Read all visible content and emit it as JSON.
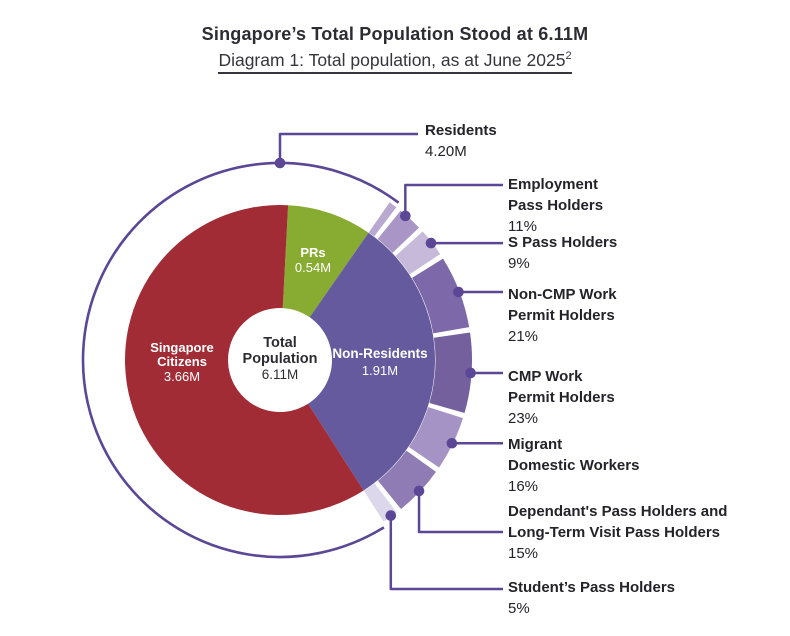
{
  "header": {
    "title": "Singapore’s Total Population Stood at 6.11M",
    "subtitle": "Diagram 1: Total population, as at June 2025",
    "subtitle_superscript": "2"
  },
  "chart_data": {
    "type": "donut",
    "title": "Singapore’s Total Population Stood at 6.11M",
    "subtitle": "Diagram 1: Total population, as at June 2025",
    "center": {
      "label_lines": [
        "Total",
        "Population"
      ],
      "value": "6.11M",
      "total_num": 6.11
    },
    "inner_segments": [
      {
        "name": "PRs",
        "label_lines": [
          "PRs"
        ],
        "value": "0.54M",
        "value_num": 0.54,
        "color": "#88ab31"
      },
      {
        "name": "Non-Residents",
        "label_lines": [
          "Non-Residents"
        ],
        "value": "1.91M",
        "value_num": 1.91,
        "color": "#655a9d"
      },
      {
        "name": "Singapore Citizens",
        "label_lines": [
          "Singapore",
          "Citizens"
        ],
        "value": "3.66M",
        "value_num": 3.66,
        "color": "#a22c35"
      }
    ],
    "residents_ring": {
      "label": "Residents",
      "value": "4.20M",
      "value_num": 4.2
    },
    "outer_segments": [
      {
        "label_lines": [
          "Employment",
          "Pass Holders"
        ],
        "pct": "11%",
        "pct_num": 11,
        "color": "#a995c6"
      },
      {
        "label_lines": [
          "S Pass Holders"
        ],
        "pct": "9%",
        "pct_num": 9,
        "color": "#c6b9da"
      },
      {
        "label_lines": [
          "Non-CMP Work",
          "Permit Holders"
        ],
        "pct": "21%",
        "pct_num": 21,
        "color": "#7d68a9"
      },
      {
        "label_lines": [
          "CMP Work",
          "Permit Holders"
        ],
        "pct": "23%",
        "pct_num": 23,
        "color": "#75609e"
      },
      {
        "label_lines": [
          "Migrant",
          "Domestic Workers"
        ],
        "pct": "16%",
        "pct_num": 16,
        "color": "#a693c6"
      },
      {
        "label_lines": [
          "Dependant's Pass Holders and",
          "Long-Term Visit Pass Holders"
        ],
        "pct": "15%",
        "pct_num": 15,
        "color": "#8f7cb5"
      },
      {
        "label_lines": [
          "Student’s Pass Holders"
        ],
        "pct": "5%",
        "pct_num": 5,
        "color": "#dcd7ea"
      }
    ],
    "colors": {
      "accent_line": "#5b4795",
      "text_dark": "#2c2c33",
      "text_light": "#ffffff"
    }
  }
}
